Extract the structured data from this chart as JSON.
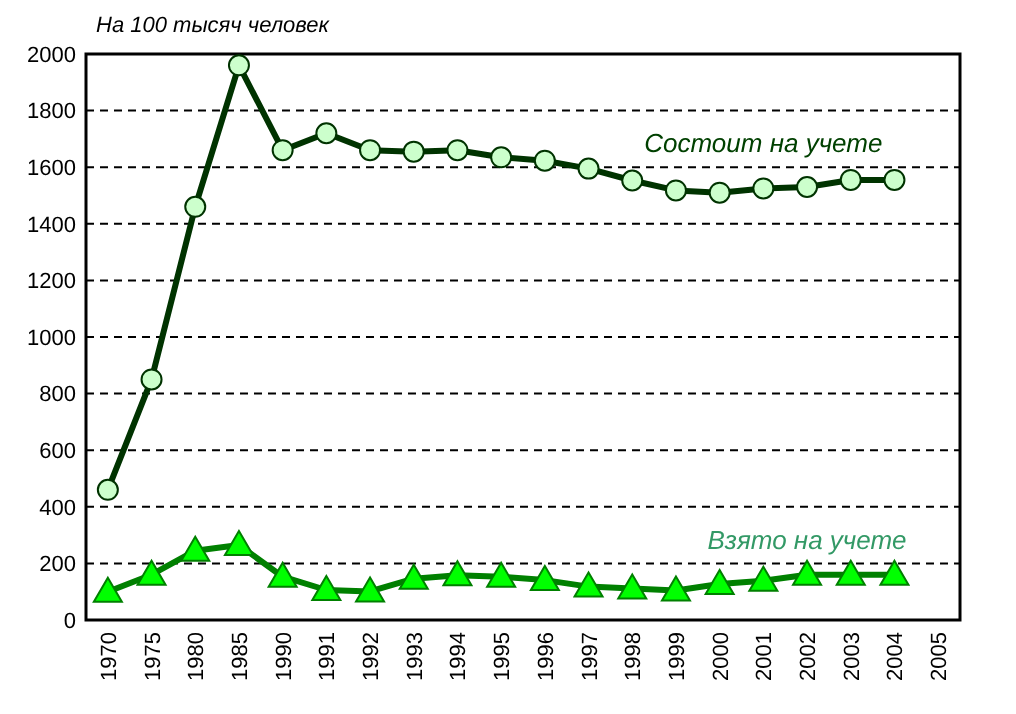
{
  "chart_data": {
    "type": "line",
    "title": "На 100 тысяч человек",
    "categories": [
      "1970",
      "1975",
      "1980",
      "1985",
      "1990",
      "1991",
      "1992",
      "1993",
      "1994",
      "1995",
      "1996",
      "1997",
      "1998",
      "1999",
      "2000",
      "2001",
      "2002",
      "2003",
      "2004",
      "2005"
    ],
    "series": [
      {
        "name": "Состоит на учете",
        "color": "#003300",
        "marker": "circle",
        "values": [
          460,
          850,
          1460,
          1960,
          1660,
          1720,
          1660,
          1655,
          1660,
          1635,
          1623,
          1595,
          1553,
          1518,
          1510,
          1525,
          1530,
          1555,
          1555,
          null
        ]
      },
      {
        "name": "Взято на учете",
        "color": "#008000",
        "marker": "triangle",
        "values": [
          100,
          160,
          245,
          265,
          153,
          106,
          101,
          146,
          158,
          153,
          141,
          118,
          111,
          104,
          127,
          139,
          160,
          160,
          160,
          null
        ]
      }
    ],
    "ylim": [
      0,
      2000
    ],
    "yticks": [
      0,
      200,
      400,
      600,
      800,
      1000,
      1200,
      1400,
      1600,
      1800,
      2000
    ],
    "grid": "y"
  }
}
